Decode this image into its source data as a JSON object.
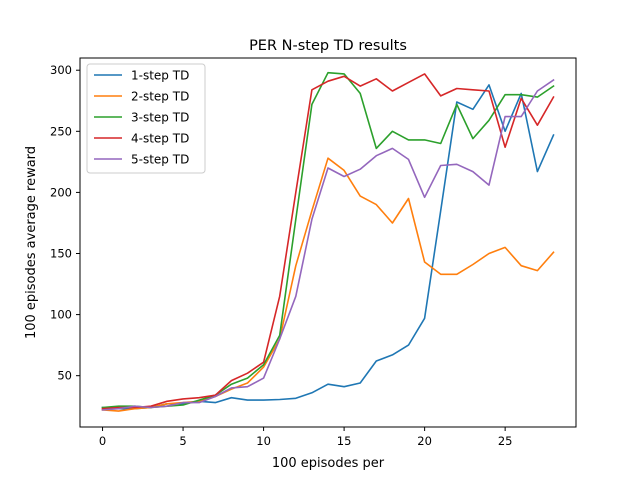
{
  "chart_data": {
    "type": "line",
    "title": "PER N-step TD results",
    "xlabel": "100 episodes per",
    "ylabel": "100 episodes average reward",
    "xlim": [
      -1.4,
      29.4
    ],
    "ylim": [
      8,
      310
    ],
    "xticks": [
      0,
      5,
      10,
      15,
      20,
      25
    ],
    "yticks": [
      50,
      100,
      150,
      200,
      250,
      300
    ],
    "grid": false,
    "legend_position": "upper-left",
    "x": [
      0,
      1,
      2,
      3,
      4,
      5,
      6,
      7,
      8,
      9,
      10,
      11,
      12,
      13,
      14,
      15,
      16,
      17,
      18,
      19,
      20,
      21,
      22,
      23,
      24,
      25,
      26,
      27,
      28
    ],
    "series": [
      {
        "name": "1-step TD",
        "color": "#1f77b4",
        "values": [
          24,
          23,
          23,
          24,
          27,
          27,
          29,
          28,
          32,
          30,
          30,
          30.5,
          31.5,
          36,
          43,
          41,
          44,
          62,
          67,
          75,
          97,
          185,
          274,
          268,
          288,
          250,
          281,
          217,
          247
        ]
      },
      {
        "name": "2-step TD",
        "color": "#ff7f0e",
        "values": [
          22,
          21,
          23,
          24,
          27,
          28,
          29,
          33,
          39,
          44,
          57,
          80,
          140,
          185,
          228,
          218,
          197,
          190,
          175,
          195,
          143,
          133,
          133,
          141,
          150,
          155,
          140,
          136,
          151
        ]
      },
      {
        "name": "3-step TD",
        "color": "#2ca02c",
        "values": [
          24,
          25,
          25,
          24,
          25,
          26,
          30,
          34,
          43,
          48,
          59,
          83,
          178,
          272,
          298,
          297,
          281,
          236,
          250,
          243,
          243,
          240,
          272,
          244,
          259,
          280,
          280,
          278,
          287
        ]
      },
      {
        "name": "4-step TD",
        "color": "#d62728",
        "values": [
          23,
          24,
          24,
          25,
          29,
          31,
          32,
          34,
          46,
          52,
          61,
          115,
          200,
          284,
          291,
          295,
          287,
          293,
          283,
          290,
          297,
          279,
          285,
          284,
          283,
          237,
          277,
          255,
          278
        ]
      },
      {
        "name": "5-step TD",
        "color": "#9467bd",
        "values": [
          22,
          23,
          25,
          24,
          25,
          28,
          28,
          33,
          40,
          41,
          48,
          80,
          115,
          178,
          220,
          213,
          219,
          230,
          236,
          227,
          196,
          222,
          223,
          217,
          206,
          262,
          262,
          283,
          292
        ]
      }
    ]
  }
}
